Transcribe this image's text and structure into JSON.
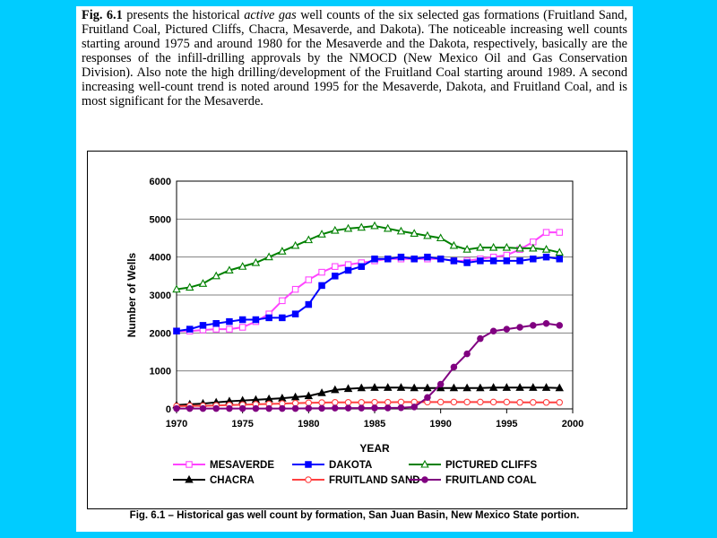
{
  "paragraph": {
    "fig_ref": "Fig. 6.1",
    "text_1": " presents the historical ",
    "italic": "active gas",
    "text_2": " well counts of the six selected gas formations (Fruitland Sand, Fruitland Coal, Pictured Cliffs, Chacra, Mesaverde, and Dakota). The noticeable increasing well counts starting around 1975 and around 1980 for the Mesaverde and the Dakota, respectively, basically are the responses of the infill-drilling approvals by the NMOCD (New Mexico Oil and Gas Conservation Division). Also note the high drilling/development of the Fruitland Coal starting around 1989. A second increasing well-count trend is noted around 1995 for the Mesaverde, Dakota, and Fruitland Coal, and is most significant for the Mesaverde."
  },
  "caption": {
    "label": "Fig. 6.1 – Historical gas well count by formation, San Juan Basin, New Mexico State portion."
  },
  "colors": {
    "mesaverde": "#ff44ff",
    "dakota": "#0000ff",
    "pictured_cliffs": "#008000",
    "chacra": "#000000",
    "fruitland_sand": "#ff4040",
    "fruitland_coal": "#800080",
    "gridline": "#808080",
    "background_outer": "#00ccff"
  },
  "chart_data": {
    "type": "line",
    "title": "",
    "xlabel": "YEAR",
    "ylabel": "Number of Wells",
    "xlim": [
      1970,
      2000
    ],
    "ylim": [
      0,
      6000
    ],
    "xticks": [
      1970,
      1975,
      1980,
      1985,
      1990,
      1995,
      2000
    ],
    "yticks": [
      0,
      1000,
      2000,
      3000,
      4000,
      5000,
      6000
    ],
    "grid": "horizontal",
    "legend_position": "bottom",
    "x": [
      1970,
      1971,
      1972,
      1973,
      1974,
      1975,
      1976,
      1977,
      1978,
      1979,
      1980,
      1981,
      1982,
      1983,
      1984,
      1985,
      1986,
      1987,
      1988,
      1989,
      1990,
      1991,
      1992,
      1993,
      1994,
      1995,
      1996,
      1997,
      1998,
      1999
    ],
    "series": [
      {
        "name": "MESAVERDE",
        "marker": "open-square",
        "color_key": "mesaverde",
        "values": [
          2050,
          2050,
          2080,
          2100,
          2100,
          2150,
          2300,
          2500,
          2850,
          3150,
          3400,
          3600,
          3750,
          3800,
          3850,
          3900,
          3950,
          3950,
          3950,
          3950,
          3950,
          3900,
          3900,
          3950,
          4000,
          4050,
          4200,
          4400,
          4650,
          4650
        ]
      },
      {
        "name": "DAKOTA",
        "marker": "filled-square",
        "color_key": "dakota",
        "values": [
          2050,
          2100,
          2200,
          2250,
          2300,
          2350,
          2350,
          2400,
          2400,
          2500,
          2750,
          3250,
          3500,
          3650,
          3750,
          3950,
          3950,
          4000,
          3950,
          4000,
          3950,
          3900,
          3850,
          3900,
          3900,
          3900,
          3900,
          3950,
          4000,
          3950
        ]
      },
      {
        "name": "PICTURED CLIFFS",
        "marker": "open-triangle",
        "color_key": "pictured_cliffs",
        "values": [
          3150,
          3200,
          3300,
          3500,
          3650,
          3750,
          3850,
          4000,
          4150,
          4300,
          4450,
          4600,
          4700,
          4750,
          4780,
          4820,
          4750,
          4680,
          4620,
          4560,
          4500,
          4300,
          4200,
          4250,
          4250,
          4250,
          4230,
          4230,
          4200,
          4120
        ]
      },
      {
        "name": "CHACRA",
        "marker": "filled-triangle",
        "color_key": "chacra",
        "values": [
          100,
          120,
          140,
          170,
          200,
          220,
          240,
          260,
          280,
          310,
          340,
          420,
          500,
          530,
          550,
          560,
          560,
          560,
          550,
          550,
          550,
          550,
          550,
          550,
          560,
          560,
          560,
          560,
          560,
          550
        ]
      },
      {
        "name": "FRUITLAND SAND",
        "marker": "open-circle",
        "color_key": "fruitland_sand",
        "values": [
          70,
          80,
          80,
          90,
          100,
          110,
          120,
          130,
          140,
          150,
          160,
          165,
          170,
          170,
          170,
          175,
          175,
          180,
          180,
          180,
          180,
          180,
          180,
          180,
          180,
          180,
          170,
          170,
          170,
          170
        ]
      },
      {
        "name": "FRUITLAND COAL",
        "marker": "filled-circle",
        "color_key": "fruitland_coal",
        "values": [
          10,
          10,
          10,
          10,
          10,
          10,
          10,
          10,
          10,
          10,
          15,
          15,
          20,
          20,
          20,
          25,
          25,
          30,
          50,
          300,
          650,
          1100,
          1450,
          1850,
          2050,
          2100,
          2150,
          2200,
          2250,
          2200
        ]
      }
    ]
  }
}
